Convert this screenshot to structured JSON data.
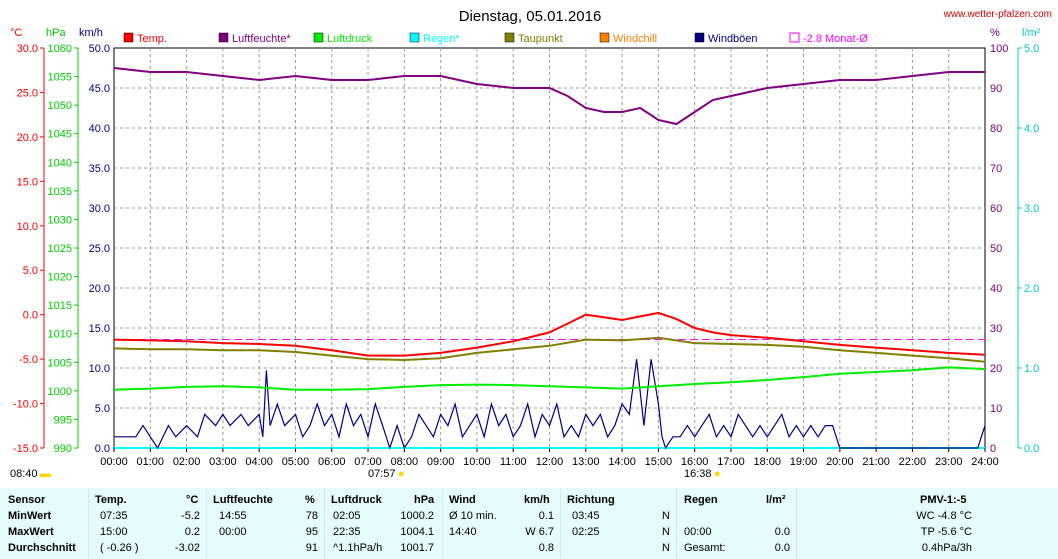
{
  "title": "Dienstag, 05.01.2016",
  "site": "www.wetter-pfalzen.com",
  "units": {
    "temp": "°C",
    "pressure": "hPa",
    "wind": "km/h",
    "humidity": "%",
    "rain": "l/m²"
  },
  "legend": [
    {
      "label": "Temp.",
      "color": "#ff0000"
    },
    {
      "label": "Luftfeuchte*",
      "color": "#800080"
    },
    {
      "label": "Luftdruck",
      "color": "#00ee00"
    },
    {
      "label": "Regen*",
      "color": "#00ffff"
    },
    {
      "label": "Taupunkt",
      "color": "#808000"
    },
    {
      "label": "Windchill",
      "color": "#ff8000"
    },
    {
      "label": "Windböen",
      "color": "#000080"
    },
    {
      "label": "-2.8 Monat-Ø",
      "color": "#ff00ff"
    }
  ],
  "axes": {
    "temp_ticks": [
      "30.0",
      "25.0",
      "20.0",
      "15.0",
      "10.0",
      "5.0",
      "0.0",
      "-5.0",
      "-10.0",
      "-15.0"
    ],
    "pressure_ticks": [
      "1060",
      "1055",
      "1050",
      "1045",
      "1040",
      "1035",
      "1030",
      "1025",
      "1020",
      "1015",
      "1010",
      "1005",
      "1000",
      "995",
      "990"
    ],
    "wind_ticks": [
      "50.0",
      "45.0",
      "40.0",
      "35.0",
      "30.0",
      "25.0",
      "20.0",
      "15.0",
      "10.0",
      "5.0",
      "0.0"
    ],
    "humidity_ticks": [
      "100",
      "90",
      "80",
      "70",
      "60",
      "50",
      "40",
      "30",
      "20",
      "10",
      "0"
    ],
    "rain_ticks": [
      "5.0",
      "4.0",
      "3.0",
      "2.0",
      "1.0",
      "0.0"
    ],
    "time_ticks": [
      "00:00",
      "01:00",
      "02:00",
      "03:00",
      "04:00",
      "05:00",
      "06:00",
      "07:00",
      "08:00",
      "09:00",
      "10:00",
      "11:00",
      "12:00",
      "13:00",
      "14:00",
      "15:00",
      "16:00",
      "17:00",
      "18:00",
      "19:00",
      "20:00",
      "21:00",
      "22:00",
      "23:00",
      "24:00"
    ]
  },
  "sun": {
    "sunrise_label": "08:40",
    "dawn_label": "07:57",
    "dusk_label": "16:38"
  },
  "chart_data": {
    "type": "line",
    "title": "Dienstag, 05.01.2016",
    "x_range": [
      0,
      24
    ],
    "ylim_temp": [
      -15,
      30
    ],
    "ylim_pressure": [
      990,
      1060
    ],
    "ylim_wind": [
      0,
      50
    ],
    "ylim_humidity": [
      0,
      100
    ],
    "ylim_rain": [
      0,
      5
    ],
    "month_avg_temp": -2.8,
    "grid": true,
    "series": [
      {
        "name": "Luftfeuchte*",
        "axis": "humidity",
        "color": "#800080",
        "x": [
          0,
          1,
          2,
          3,
          4,
          5,
          6,
          7,
          8,
          9,
          10,
          11,
          12,
          12.5,
          13,
          13.5,
          14,
          14.5,
          15,
          15.5,
          16,
          16.5,
          17,
          18,
          19,
          20,
          21,
          22,
          23,
          24
        ],
        "y": [
          95,
          94,
          94,
          93,
          92,
          93,
          92,
          92,
          93,
          93,
          91,
          90,
          90,
          88,
          85,
          84,
          84,
          85,
          82,
          81,
          84,
          87,
          88,
          90,
          91,
          92,
          92,
          93,
          94,
          94
        ]
      },
      {
        "name": "Temp.",
        "axis": "temp",
        "color": "#ff0000",
        "x": [
          0,
          1,
          2,
          3,
          4,
          5,
          6,
          7,
          8,
          9,
          10,
          11,
          12,
          12.5,
          13,
          13.5,
          14,
          14.5,
          15,
          15.5,
          16,
          16.5,
          17,
          18,
          19,
          20,
          21,
          22,
          23,
          24
        ],
        "y": [
          -2.8,
          -2.9,
          -3.0,
          -3.2,
          -3.3,
          -3.5,
          -4.0,
          -4.6,
          -4.6,
          -4.3,
          -3.7,
          -3.0,
          -2.0,
          -1.0,
          0.0,
          -0.3,
          -0.6,
          -0.2,
          0.2,
          -0.5,
          -1.5,
          -2.0,
          -2.3,
          -2.6,
          -3.0,
          -3.4,
          -3.7,
          -4.0,
          -4.3,
          -4.5
        ]
      },
      {
        "name": "Taupunkt",
        "axis": "temp",
        "color": "#808000",
        "x": [
          0,
          1,
          2,
          3,
          4,
          5,
          6,
          7,
          8,
          9,
          10,
          11,
          12,
          13,
          14,
          15,
          16,
          17,
          18,
          19,
          20,
          21,
          22,
          23,
          24
        ],
        "y": [
          -3.8,
          -3.9,
          -3.9,
          -4.0,
          -4.0,
          -4.2,
          -4.6,
          -5.0,
          -5.1,
          -4.9,
          -4.3,
          -3.9,
          -3.5,
          -2.8,
          -2.9,
          -2.6,
          -3.2,
          -3.3,
          -3.4,
          -3.6,
          -4.0,
          -4.3,
          -4.6,
          -4.9,
          -5.3
        ]
      },
      {
        "name": "Luftdruck",
        "axis": "pressure",
        "color": "#00ee00",
        "x": [
          0,
          1,
          2,
          3,
          4,
          5,
          6,
          7,
          8,
          9,
          10,
          11,
          12,
          13,
          14,
          15,
          16,
          17,
          18,
          19,
          20,
          21,
          22,
          23,
          24
        ],
        "y": [
          1000.2,
          1000.4,
          1000.7,
          1000.8,
          1000.6,
          1000.2,
          1000.2,
          1000.3,
          1000.7,
          1001.0,
          1001.1,
          1001.0,
          1000.8,
          1000.6,
          1000.4,
          1000.8,
          1001.2,
          1001.5,
          1001.9,
          1002.4,
          1003.0,
          1003.3,
          1003.6,
          1004.1,
          1003.8
        ]
      },
      {
        "name": "Windböen",
        "axis": "wind",
        "color": "#000080",
        "x": [
          0,
          0.6,
          0.8,
          1,
          1.2,
          1.5,
          1.7,
          2,
          2.3,
          2.5,
          2.8,
          3,
          3.2,
          3.5,
          3.7,
          4,
          4.1,
          4.2,
          4.3,
          4.5,
          4.7,
          5,
          5.2,
          5.4,
          5.6,
          5.8,
          6,
          6.2,
          6.4,
          6.6,
          6.8,
          7,
          7.2,
          7.4,
          7.6,
          7.8,
          8,
          8.2,
          8.4,
          8.6,
          8.8,
          9,
          9.2,
          9.4,
          9.6,
          9.8,
          10,
          10.2,
          10.4,
          10.6,
          10.8,
          11,
          11.2,
          11.4,
          11.6,
          11.8,
          12,
          12.2,
          12.4,
          12.6,
          12.8,
          13,
          13.2,
          13.4,
          13.6,
          13.8,
          14,
          14.2,
          14.4,
          14.6,
          14.8,
          15,
          15.1,
          15.2,
          15.4,
          15.6,
          15.8,
          16,
          16.2,
          16.4,
          16.6,
          16.8,
          17,
          17.2,
          17.4,
          17.6,
          17.8,
          18,
          18.2,
          18.4,
          18.6,
          18.8,
          19,
          19.2,
          19.4,
          19.6,
          19.8,
          20,
          20.2,
          21,
          22,
          23,
          23.8,
          24
        ],
        "y": [
          1.4,
          1.4,
          2.8,
          1.4,
          0,
          2.8,
          1.4,
          2.8,
          1.4,
          4.2,
          2.8,
          4.2,
          2.8,
          4.2,
          2.8,
          4.2,
          1.4,
          9.7,
          2.8,
          5.5,
          2.8,
          4.2,
          1.4,
          2.8,
          5.5,
          2.8,
          4.2,
          1.4,
          5.5,
          2.8,
          4.2,
          1.4,
          5.5,
          2.8,
          0,
          2.8,
          0,
          1.4,
          4.2,
          2.8,
          1.4,
          4.2,
          2.8,
          5.5,
          1.4,
          2.8,
          4.2,
          1.4,
          5.5,
          2.8,
          4.2,
          1.4,
          2.8,
          5.5,
          1.4,
          4.2,
          2.8,
          5.5,
          1.4,
          2.8,
          1.4,
          4.2,
          2.8,
          4.2,
          1.4,
          2.8,
          5.5,
          4.2,
          11.1,
          2.8,
          11.1,
          5.5,
          1.4,
          0,
          1.4,
          1.4,
          2.8,
          1.4,
          2.8,
          4.2,
          1.4,
          2.8,
          1.4,
          4.2,
          2.8,
          1.4,
          2.8,
          1.4,
          2.8,
          4.2,
          1.4,
          2.8,
          1.4,
          2.8,
          1.4,
          2.8,
          2.8,
          0,
          0,
          0,
          0,
          0,
          0,
          2.8
        ]
      },
      {
        "name": "Regen*",
        "axis": "rain",
        "color": "#00ffff",
        "x": [
          0,
          24
        ],
        "y": [
          0,
          0
        ]
      }
    ]
  },
  "stats": {
    "headers": {
      "sensor": "Sensor",
      "temp": "Temp.",
      "temp_unit": "°C",
      "hum": "Luftfeuchte",
      "hum_unit": "%",
      "press": "Luftdruck",
      "press_unit": "hPa",
      "wind": "Wind",
      "wind_unit": "km/h",
      "dir": "Richtung",
      "rain": "Regen",
      "rain_unit": "l/m²",
      "pmv": "PMV-1:-5"
    },
    "rows": [
      {
        "label": "MinWert",
        "temp_time": "07:35",
        "temp_val": "-5.2",
        "hum_time": "14:55",
        "hum_val": "78",
        "press_time": "02:05",
        "press_val": "1000.2",
        "wind_label": "Ø 10 min.",
        "wind_val": "0.1",
        "dir_time": "03:45",
        "dir_val": "N",
        "rain_label": "",
        "rain_val": "",
        "pmv": "WC -4.8 °C"
      },
      {
        "label": "MaxWert",
        "temp_time": "15:00",
        "temp_val": "0.2",
        "hum_time": "00:00",
        "hum_val": "95",
        "press_time": "22:35",
        "press_val": "1004.1",
        "wind_label": "14:40",
        "wind_val": "W 6.7",
        "dir_time": "02:25",
        "dir_val": "N",
        "rain_label": "00:00",
        "rain_val": "0.0",
        "pmv": "TP -5.6 °C"
      },
      {
        "label": "Durchschnitt",
        "temp_time": "( -0.26 )",
        "temp_val": "-3.02",
        "hum_time": "",
        "hum_val": "91",
        "press_time": "^1.1hPa/h",
        "press_val": "1001.7",
        "wind_label": "",
        "wind_val": "0.8",
        "dir_time": "",
        "dir_val": "N",
        "rain_label": "Gesamt:",
        "rain_val": "0.0",
        "pmv": "0.4hPa/3h"
      }
    ]
  }
}
